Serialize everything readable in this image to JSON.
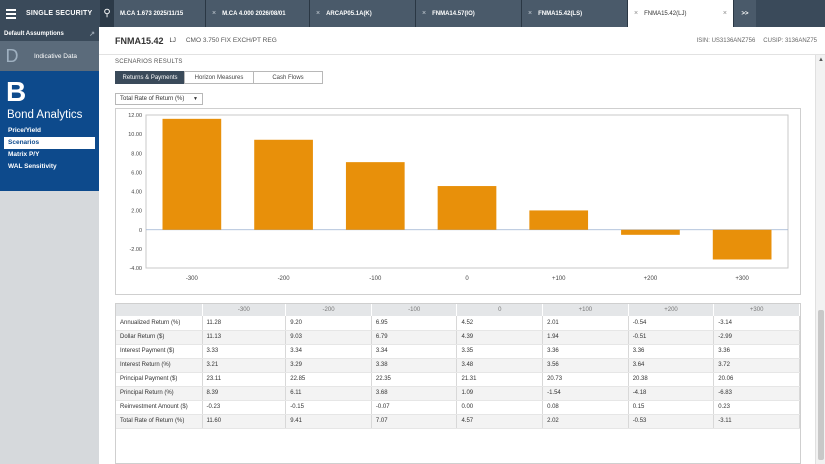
{
  "app": {
    "title": "SINGLE SECURITY"
  },
  "tabs": [
    {
      "label": "M.CA 1.673 2025/11/15",
      "width": 92
    },
    {
      "label": "M.CA 4.000 2026/08/01",
      "width": 104
    },
    {
      "label": "ARCAP05.1A(K)",
      "width": 106
    },
    {
      "label": "FNMA14.57(IO)",
      "width": 106
    },
    {
      "label": "FNMA15.42(LS)",
      "width": 106
    },
    {
      "label": "FNMA15.42(LJ)",
      "width": 106,
      "active": true
    }
  ],
  "more_tabs": ">>",
  "sidebar": {
    "default_assumptions": "Default Assumptions",
    "indicative_letter": "D",
    "indicative_label": "Indicative Data",
    "bond_letter": "B",
    "bond_title": "Bond Analytics",
    "nav": [
      {
        "label": "Price/Yield"
      },
      {
        "label": "Scenarios",
        "active": true
      },
      {
        "label": "Matrix P/Y"
      },
      {
        "label": "WAL Sensitivity"
      }
    ]
  },
  "security": {
    "name": "FNMA15.42",
    "type": "LJ",
    "description": "CMO 3.750 FIX EXCH/PT REG",
    "isin": "ISIN: US3136ANZ756",
    "cusip": "CUSIP: 3136ANZ75"
  },
  "scenarios": {
    "section_label": "SCENARIOS RESULTS",
    "subtabs": [
      {
        "label": "Returns & Payments",
        "active": true
      },
      {
        "label": "Horizon Measures"
      },
      {
        "label": "Cash Flows"
      }
    ],
    "metric_selected": "Total Rate of Return (%)"
  },
  "chart_data": {
    "type": "bar",
    "categories": [
      "-300",
      "-200",
      "-100",
      "0",
      "+100",
      "+200",
      "+300"
    ],
    "values": [
      11.6,
      9.41,
      7.07,
      4.57,
      2.02,
      -0.53,
      -3.11
    ],
    "yticks": [
      "12.00",
      "10.00",
      "8.00",
      "6.00",
      "4.00",
      "2.00",
      "0",
      "-2.00",
      "-4.00"
    ],
    "ylim": [
      -4,
      12
    ],
    "grid": false,
    "bar_color": "#e8900a",
    "title": "",
    "xlabel": "",
    "ylabel": ""
  },
  "table": {
    "columns": [
      "-300",
      "-200",
      "-100",
      "0",
      "+100",
      "+200",
      "+300"
    ],
    "rows": [
      {
        "label": "Annualized Return (%)",
        "values": [
          "11.28",
          "9.20",
          "6.95",
          "4.52",
          "2.01",
          "-0.54",
          "-3.14"
        ]
      },
      {
        "label": "Dollar Return ($)",
        "values": [
          "11.13",
          "9.03",
          "6.79",
          "4.39",
          "1.94",
          "-0.51",
          "-2.99"
        ]
      },
      {
        "label": "Interest Payment ($)",
        "values": [
          "3.33",
          "3.34",
          "3.34",
          "3.35",
          "3.36",
          "3.36",
          "3.36"
        ]
      },
      {
        "label": "Interest Return (%)",
        "values": [
          "3.21",
          "3.29",
          "3.38",
          "3.48",
          "3.56",
          "3.64",
          "3.72"
        ]
      },
      {
        "label": "Principal Payment ($)",
        "values": [
          "23.11",
          "22.85",
          "22.35",
          "21.31",
          "20.73",
          "20.38",
          "20.06"
        ]
      },
      {
        "label": "Principal Return (%)",
        "values": [
          "8.39",
          "6.11",
          "3.68",
          "1.09",
          "-1.54",
          "-4.18",
          "-6.83"
        ]
      },
      {
        "label": "Reinvestment Amount ($)",
        "values": [
          "-0.23",
          "-0.15",
          "-0.07",
          "0.00",
          "0.08",
          "0.15",
          "0.23"
        ]
      },
      {
        "label": "Total Rate of Return (%)",
        "values": [
          "11.60",
          "9.41",
          "7.07",
          "4.57",
          "2.02",
          "-0.53",
          "-3.11"
        ]
      }
    ]
  }
}
